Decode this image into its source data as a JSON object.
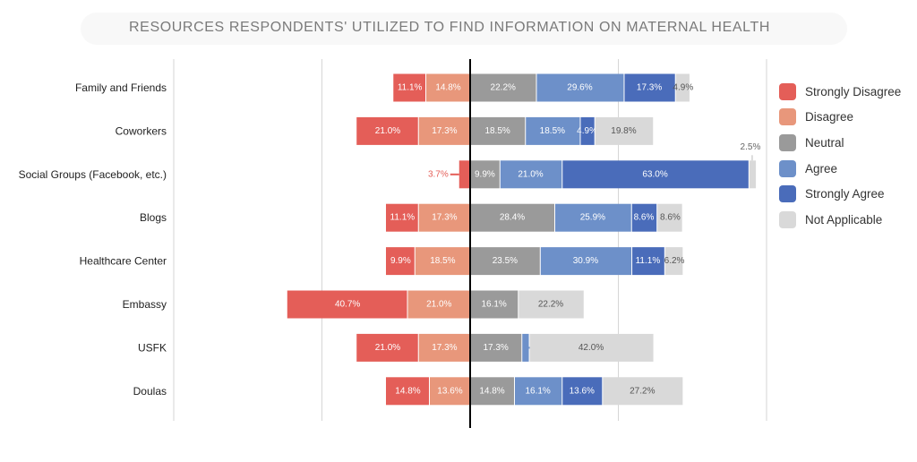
{
  "chart_data": {
    "type": "bar",
    "subtype": "diverging-stacked-horizontal",
    "title": "RESOURCES RESPONDENTS' UTILIZED TO FIND INFORMATION ON MATERNAL HEALTH",
    "xlim": [
      -100,
      100
    ],
    "grid": true,
    "legend_position": "right",
    "categories": [
      "Family and Friends",
      "Coworkers",
      "Social Groups (Facebook, etc.)",
      "Blogs",
      "Healthcare Center",
      "Embassy",
      "USFK",
      "Doulas"
    ],
    "series": [
      {
        "name": "Strongly Disagree",
        "color": "#e45e58",
        "side": "left",
        "values": [
          11.1,
          21.0,
          3.7,
          11.1,
          9.9,
          40.7,
          21.0,
          14.8
        ]
      },
      {
        "name": "Disagree",
        "color": "#e8977b",
        "side": "left",
        "values": [
          14.8,
          17.3,
          0,
          17.3,
          18.5,
          21.0,
          17.3,
          13.6
        ]
      },
      {
        "name": "Neutral",
        "color": "#9a9a9a",
        "side": "right",
        "values": [
          22.2,
          18.5,
          9.9,
          28.4,
          23.5,
          16.1,
          17.3,
          14.8
        ]
      },
      {
        "name": "Agree",
        "color": "#6d90c9",
        "side": "right",
        "values": [
          29.6,
          18.5,
          21.0,
          25.9,
          30.9,
          0,
          2.5,
          16.1
        ]
      },
      {
        "name": "Strongly Agree",
        "color": "#4a6cba",
        "side": "right",
        "values": [
          17.3,
          4.9,
          63.0,
          8.6,
          11.1,
          0,
          0,
          13.6
        ]
      },
      {
        "name": "Not Applicable",
        "color": "#d9d9d9",
        "side": "right",
        "values": [
          4.9,
          19.8,
          2.5,
          8.6,
          6.2,
          22.2,
          42.0,
          27.2
        ]
      }
    ]
  }
}
